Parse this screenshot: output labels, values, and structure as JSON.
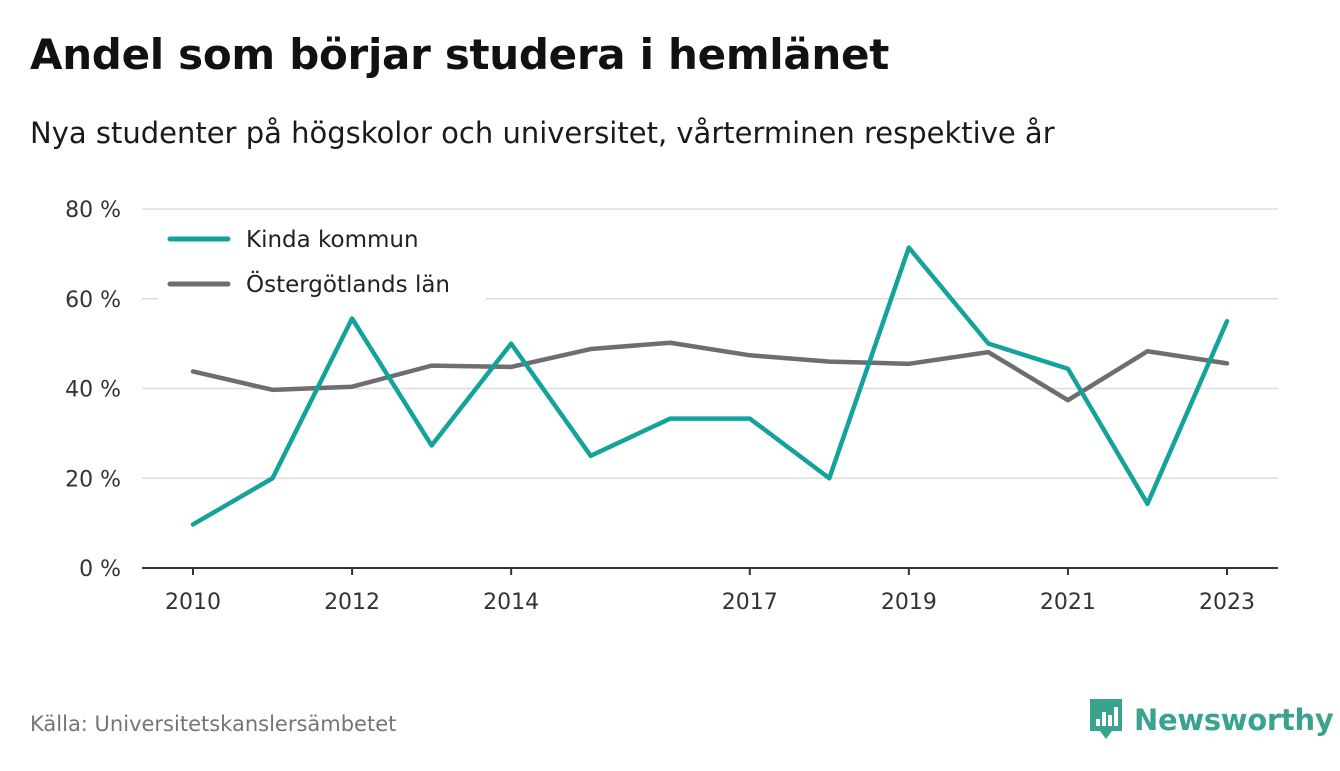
{
  "title": "Andel som börjar studera i hemlänet",
  "subtitle": "Nya studenter på högskolor och universitet, vårterminen respektive år",
  "source": "Källa: Universitetskanslersämbetet",
  "brand": {
    "name": "Newsworthy",
    "icon": "newsworthy-logo-icon",
    "color": "#3aa38f"
  },
  "chart_data": {
    "type": "line",
    "x": [
      2010,
      2011,
      2012,
      2013,
      2014,
      2015,
      2016,
      2017,
      2018,
      2019,
      2020,
      2021,
      2022,
      2023
    ],
    "xticks": [
      "2010",
      "2012",
      "2014",
      "2017",
      "2019",
      "2021",
      "2023"
    ],
    "yticks": [
      "0 %",
      "20 %",
      "40 %",
      "60 %",
      "80 %"
    ],
    "ylim": [
      0,
      80
    ],
    "grid": true,
    "legend_position": "top-left",
    "series": [
      {
        "name": "Kinda kommun",
        "color": "#14a39a",
        "values": [
          9.7,
          20.0,
          55.6,
          27.3,
          50.0,
          25.0,
          33.3,
          33.3,
          20.0,
          71.4,
          50.0,
          44.4,
          14.3,
          55.0
        ]
      },
      {
        "name": "Östergötlands län",
        "color": "#6d6d72",
        "values": [
          43.8,
          39.7,
          40.4,
          45.1,
          44.8,
          48.8,
          50.2,
          47.4,
          46.0,
          45.5,
          48.1,
          37.4,
          48.3,
          45.6
        ]
      }
    ]
  }
}
